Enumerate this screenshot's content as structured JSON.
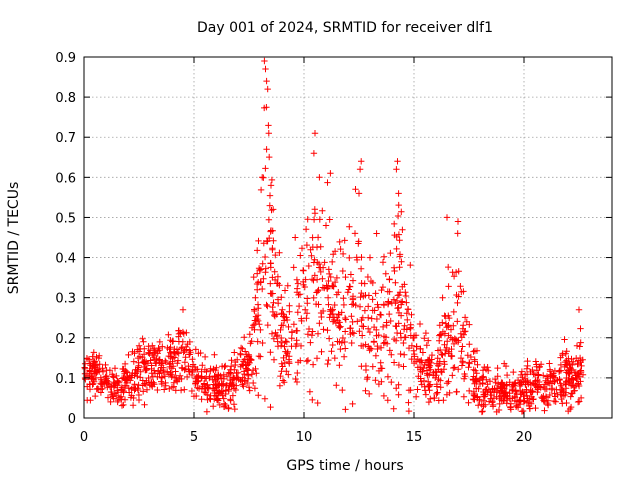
{
  "chart_data": {
    "type": "scatter",
    "title": "Day 001 of 2024, SRMTID for receiver dlf1",
    "xlabel": "GPS time / hours",
    "ylabel": "SRMTID / TECUs",
    "xlim": [
      0,
      24
    ],
    "ylim": [
      0,
      0.9
    ],
    "x_ticks": [
      "0",
      "5",
      "10",
      "15",
      "20"
    ],
    "y_ticks": [
      "0",
      "0.1",
      "0.2",
      "0.3",
      "0.4",
      "0.5",
      "0.6",
      "0.7",
      "0.8",
      "0.9"
    ],
    "grid": true,
    "marker": "+",
    "series": [
      {
        "name": "SRMTID",
        "color": "#ff0000",
        "profile_x": [
          0.0,
          0.5,
          1.0,
          1.5,
          2.0,
          2.5,
          3.0,
          3.5,
          4.0,
          4.5,
          5.0,
          5.5,
          6.0,
          6.5,
          7.0,
          7.5,
          8.0,
          8.3,
          8.6,
          9.0,
          9.5,
          10.0,
          10.5,
          11.0,
          11.5,
          12.0,
          12.5,
          13.0,
          13.5,
          14.0,
          14.3,
          14.6,
          15.0,
          15.5,
          16.0,
          16.5,
          17.0,
          17.5,
          18.0,
          18.5,
          19.0,
          19.5,
          20.0,
          20.5,
          21.0,
          21.5,
          22.0,
          22.5,
          22.7
        ],
        "profile_mean": [
          0.11,
          0.11,
          0.09,
          0.07,
          0.08,
          0.12,
          0.13,
          0.12,
          0.13,
          0.15,
          0.1,
          0.09,
          0.08,
          0.07,
          0.12,
          0.13,
          0.3,
          0.45,
          0.3,
          0.22,
          0.2,
          0.3,
          0.35,
          0.3,
          0.25,
          0.28,
          0.3,
          0.22,
          0.2,
          0.3,
          0.35,
          0.25,
          0.15,
          0.12,
          0.1,
          0.2,
          0.25,
          0.12,
          0.08,
          0.07,
          0.07,
          0.06,
          0.07,
          0.08,
          0.08,
          0.09,
          0.1,
          0.1,
          0.12
        ],
        "profile_spread": [
          0.03,
          0.03,
          0.025,
          0.025,
          0.03,
          0.035,
          0.04,
          0.035,
          0.04,
          0.05,
          0.03,
          0.03,
          0.03,
          0.03,
          0.03,
          0.04,
          0.12,
          0.2,
          0.12,
          0.08,
          0.07,
          0.1,
          0.12,
          0.1,
          0.08,
          0.1,
          0.12,
          0.08,
          0.07,
          0.12,
          0.14,
          0.1,
          0.05,
          0.04,
          0.03,
          0.08,
          0.1,
          0.05,
          0.03,
          0.025,
          0.025,
          0.025,
          0.03,
          0.03,
          0.03,
          0.035,
          0.04,
          0.04,
          0.05
        ],
        "spikes": [
          {
            "x": 8.2,
            "y": 0.89
          },
          {
            "x": 8.25,
            "y": 0.87
          },
          {
            "x": 8.3,
            "y": 0.84
          },
          {
            "x": 8.35,
            "y": 0.82
          },
          {
            "x": 8.4,
            "y": 0.71
          },
          {
            "x": 8.3,
            "y": 0.67
          },
          {
            "x": 8.1,
            "y": 0.6
          },
          {
            "x": 8.5,
            "y": 0.58
          },
          {
            "x": 8.6,
            "y": 0.52
          },
          {
            "x": 10.5,
            "y": 0.71
          },
          {
            "x": 10.45,
            "y": 0.66
          },
          {
            "x": 10.7,
            "y": 0.6
          },
          {
            "x": 11.2,
            "y": 0.61
          },
          {
            "x": 12.6,
            "y": 0.64
          },
          {
            "x": 12.55,
            "y": 0.62
          },
          {
            "x": 12.5,
            "y": 0.56
          },
          {
            "x": 14.25,
            "y": 0.64
          },
          {
            "x": 14.2,
            "y": 0.62
          },
          {
            "x": 14.3,
            "y": 0.56
          },
          {
            "x": 16.5,
            "y": 0.5
          },
          {
            "x": 17.0,
            "y": 0.49
          },
          {
            "x": 16.3,
            "y": 0.3
          },
          {
            "x": 4.5,
            "y": 0.27
          },
          {
            "x": 22.5,
            "y": 0.27
          },
          {
            "x": 2.7,
            "y": 0.19
          },
          {
            "x": 9.6,
            "y": 0.45
          },
          {
            "x": 11.0,
            "y": 0.48
          },
          {
            "x": 13.3,
            "y": 0.46
          },
          {
            "x": 13.0,
            "y": 0.4
          },
          {
            "x": 15.0,
            "y": 0.2
          },
          {
            "x": 21.9,
            "y": 0.16
          }
        ],
        "sample_count": 1700
      }
    ]
  }
}
